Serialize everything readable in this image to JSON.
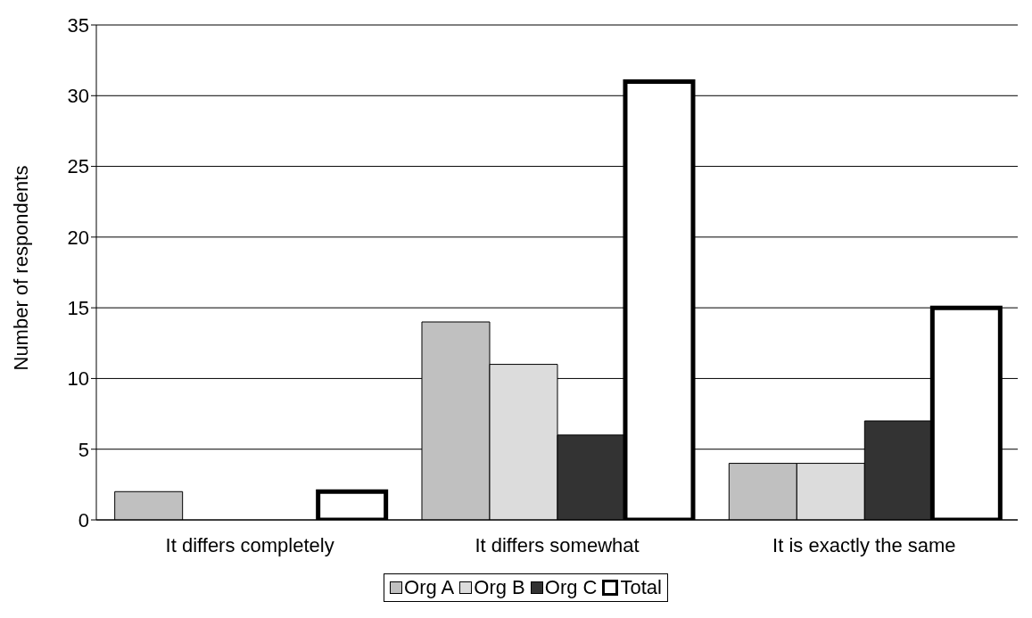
{
  "chart_data": {
    "type": "bar",
    "ylabel": "Number of respondents",
    "categories": [
      "It differs completely",
      "It differs somewhat",
      "It is exactly the same"
    ],
    "series": [
      {
        "name": "Org A",
        "color": "#c0c0c0",
        "values": [
          2,
          14,
          4
        ]
      },
      {
        "name": "Org B",
        "color": "#dcdcdc",
        "values": [
          0,
          11,
          4
        ]
      },
      {
        "name": "Org C",
        "color": "#333333",
        "values": [
          0,
          6,
          7
        ]
      },
      {
        "name": "Total",
        "color": "#ffffff",
        "values": [
          2,
          31,
          15
        ]
      }
    ],
    "ylim": [
      0,
      35
    ],
    "yticks": [
      0,
      5,
      10,
      15,
      20,
      25,
      30,
      35
    ],
    "grid": "y",
    "legend": "bottom"
  }
}
